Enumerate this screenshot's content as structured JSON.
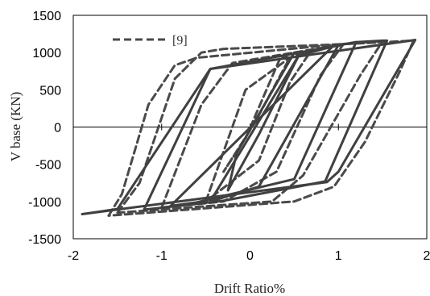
{
  "chart_data": {
    "type": "line",
    "xlabel": "Drift  Ratio%",
    "ylabel": "V base (KN)",
    "xlim": [
      -2,
      2
    ],
    "ylim": [
      -1500,
      1500
    ],
    "x_ticks": [
      "-2",
      "-1",
      "0",
      "1",
      "2"
    ],
    "y_ticks": [
      "1500",
      "1000",
      "500",
      "0",
      "-500",
      "-1000",
      "-1500"
    ],
    "grid": false,
    "legend_position": "top-left",
    "colors": {
      "solid": "#404040",
      "dashed": "#4a4a4a"
    },
    "series": [
      {
        "name": "",
        "style": "solid",
        "loops": [
          [
            [
              -0.15,
              -350
            ],
            [
              0.5,
              1000
            ],
            [
              0.55,
              960
            ],
            [
              0.1,
              -100
            ],
            [
              -0.25,
              -850
            ],
            [
              -0.15,
              -350
            ]
          ],
          [
            [
              -0.45,
              -1000
            ],
            [
              0.55,
              960
            ],
            [
              0.9,
              1070
            ],
            [
              1.0,
              1100
            ],
            [
              0.1,
              -800
            ],
            [
              -0.45,
              -1000
            ]
          ],
          [
            [
              -0.9,
              -1060
            ],
            [
              0.95,
              1100
            ],
            [
              1.1,
              1120
            ],
            [
              1.2,
              1140
            ],
            [
              0.5,
              -700
            ],
            [
              -0.6,
              -1010
            ],
            [
              -0.9,
              -1060
            ]
          ],
          [
            [
              -1.2,
              -1110
            ],
            [
              -0.45,
              780
            ],
            [
              1.2,
              1140
            ],
            [
              1.5,
              1160
            ],
            [
              1.55,
              1160
            ],
            [
              0.85,
              -730
            ],
            [
              -0.3,
              -990
            ],
            [
              -1.2,
              -1110
            ]
          ],
          [
            [
              -1.9,
              -1170
            ],
            [
              -1.5,
              -1100
            ],
            [
              -0.45,
              780
            ],
            [
              1.87,
              1170
            ],
            [
              1.0,
              -600
            ],
            [
              0.87,
              -740
            ],
            [
              -1.9,
              -1170
            ]
          ]
        ]
      },
      {
        "name": "[9]",
        "style": "dashed",
        "loops": [
          [
            [
              -0.05,
              -150
            ],
            [
              0.35,
              950
            ],
            [
              0.45,
              930
            ],
            [
              0.05,
              50
            ],
            [
              -0.3,
              -600
            ],
            [
              -0.05,
              -150
            ]
          ],
          [
            [
              -0.5,
              -1000
            ],
            [
              -0.05,
              500
            ],
            [
              0.45,
              930
            ],
            [
              0.7,
              1040
            ],
            [
              0.45,
              600
            ],
            [
              0.1,
              -450
            ],
            [
              -0.5,
              -1000
            ]
          ],
          [
            [
              -1.0,
              -1080
            ],
            [
              -0.55,
              300
            ],
            [
              -0.2,
              860
            ],
            [
              0.8,
              1060
            ],
            [
              1.05,
              1100
            ],
            [
              0.8,
              700
            ],
            [
              0.3,
              -600
            ],
            [
              -0.3,
              -1000
            ],
            [
              -1.0,
              -1080
            ]
          ],
          [
            [
              -1.5,
              -1150
            ],
            [
              -1.25,
              -750
            ],
            [
              -0.85,
              650
            ],
            [
              -0.55,
              1000
            ],
            [
              -0.3,
              1050
            ],
            [
              1.0,
              1110
            ],
            [
              1.5,
              1150
            ],
            [
              1.25,
              700
            ],
            [
              0.6,
              -650
            ],
            [
              0.25,
              -1000
            ],
            [
              -1.5,
              -1150
            ]
          ],
          [
            [
              -1.6,
              -1190
            ],
            [
              -1.45,
              -900
            ],
            [
              -1.15,
              300
            ],
            [
              -0.85,
              830
            ],
            [
              -0.6,
              930
            ],
            [
              1.0,
              1110
            ],
            [
              1.85,
              1160
            ],
            [
              1.7,
              760
            ],
            [
              1.3,
              -200
            ],
            [
              0.95,
              -800
            ],
            [
              0.5,
              -1000
            ],
            [
              -1.6,
              -1190
            ]
          ]
        ]
      }
    ]
  }
}
